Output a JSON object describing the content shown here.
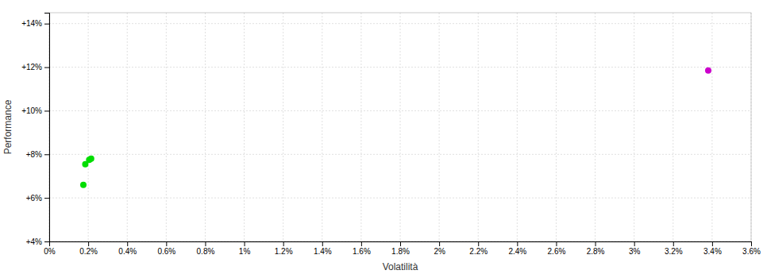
{
  "chart_data": {
    "type": "scatter",
    "xlabel": "Volatilità",
    "ylabel": "Performance",
    "xlim": [
      0.0,
      0.036
    ],
    "ylim": [
      0.04,
      0.145
    ],
    "xticks": [
      {
        "value": 0.0,
        "label": "0%"
      },
      {
        "value": 0.002,
        "label": "0.2%"
      },
      {
        "value": 0.004,
        "label": "0.4%"
      },
      {
        "value": 0.006,
        "label": "0.6%"
      },
      {
        "value": 0.008,
        "label": "0.8%"
      },
      {
        "value": 0.01,
        "label": "1%"
      },
      {
        "value": 0.012,
        "label": "1.2%"
      },
      {
        "value": 0.014,
        "label": "1.4%"
      },
      {
        "value": 0.016,
        "label": "1.6%"
      },
      {
        "value": 0.018,
        "label": "1.8%"
      },
      {
        "value": 0.02,
        "label": "2%"
      },
      {
        "value": 0.022,
        "label": "2.2%"
      },
      {
        "value": 0.024,
        "label": "2.4%"
      },
      {
        "value": 0.026,
        "label": "2.6%"
      },
      {
        "value": 0.028,
        "label": "2.8%"
      },
      {
        "value": 0.03,
        "label": "3%"
      },
      {
        "value": 0.032,
        "label": "3.2%"
      },
      {
        "value": 0.034,
        "label": "3.4%"
      },
      {
        "value": 0.036,
        "label": "3.6%"
      }
    ],
    "yticks": [
      {
        "value": 0.04,
        "label": "+4%"
      },
      {
        "value": 0.06,
        "label": "+6%"
      },
      {
        "value": 0.08,
        "label": "+8%"
      },
      {
        "value": 0.1,
        "label": "+10%"
      },
      {
        "value": 0.12,
        "label": "+12%"
      },
      {
        "value": 0.14,
        "label": "+14%"
      }
    ],
    "grid": true,
    "series": [
      {
        "color": "#00dd00",
        "x": [
          0.00185,
          0.00205,
          0.00215,
          0.00175
        ],
        "values": [
          0.0755,
          0.0775,
          0.078,
          0.066
        ]
      },
      {
        "color": "#cc00cc",
        "x": [
          0.0338
        ],
        "values": [
          0.1185
        ]
      }
    ]
  }
}
